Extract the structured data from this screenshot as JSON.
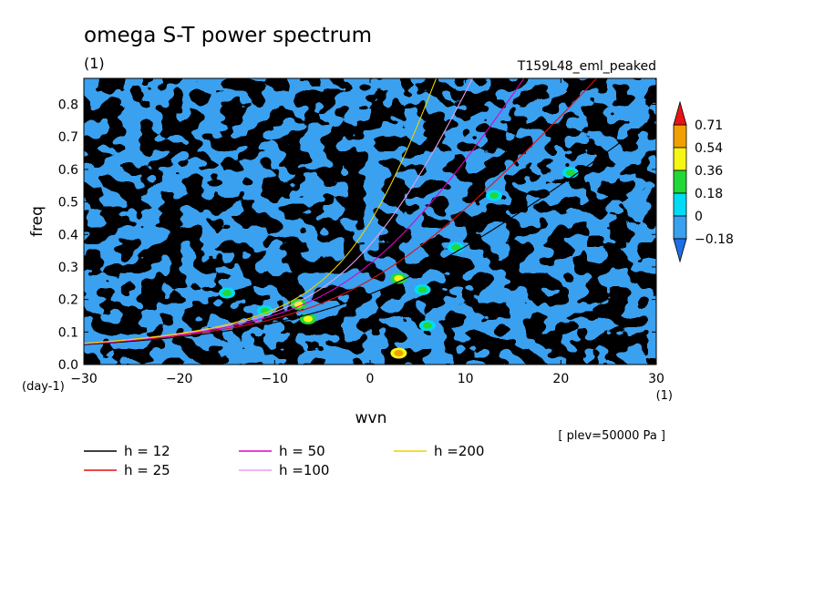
{
  "chart_data": {
    "type": "heatmap",
    "title": "omega S-T power spectrum",
    "subtitle_units": "(1)",
    "run_label": "T159L48_eml_peaked",
    "xlabel": "wvn",
    "x_unit": "(1)",
    "ylabel": "freq",
    "y_unit": "(day-1)",
    "xlim": [
      -30,
      30
    ],
    "ylim": [
      0.0,
      0.88
    ],
    "x_ticks": [
      -30,
      -20,
      -10,
      0,
      10,
      20,
      30
    ],
    "x_tick_labels": [
      "-30",
      "-20",
      "-10",
      "0",
      "10",
      "20",
      "30"
    ],
    "y_ticks": [
      0.0,
      0.1,
      0.2,
      0.3,
      0.4,
      0.5,
      0.6,
      0.7,
      0.8
    ],
    "y_tick_labels": [
      "0.0",
      "0.1",
      "0.2",
      "0.3",
      "0.4",
      "0.5",
      "0.6",
      "0.7",
      "0.8"
    ],
    "note": "[ plev=50000 Pa ]",
    "colorbar": {
      "levels": [
        -0.18,
        0,
        0.18,
        0.36,
        0.54,
        0.71
      ],
      "labels": [
        "-0.18",
        "0",
        "0.18",
        "0.36",
        "0.54",
        "0.71"
      ],
      "colors": [
        "#1e6ee6",
        "#3aa0f0",
        "#00dcf5",
        "#22d838",
        "#f5f516",
        "#f0a000",
        "#e81414"
      ]
    },
    "hotspots": [
      {
        "x": -6.5,
        "y": 0.14,
        "level": "0.36"
      },
      {
        "x": -7.5,
        "y": 0.185,
        "level": "0.36"
      },
      {
        "x": 3.0,
        "y": 0.265,
        "level": "0.36"
      },
      {
        "x": 3.0,
        "y": 0.035,
        "level": "0.54"
      },
      {
        "x": 5.5,
        "y": 0.23,
        "level": "0.18"
      },
      {
        "x": 6.0,
        "y": 0.12,
        "level": "0.18"
      },
      {
        "x": -15.0,
        "y": 0.22,
        "level": "0.18"
      },
      {
        "x": 9.0,
        "y": 0.36,
        "level": "0.18"
      },
      {
        "x": 13.0,
        "y": 0.52,
        "level": "0.18"
      },
      {
        "x": 21.0,
        "y": 0.59,
        "level": "0.18"
      },
      {
        "x": -11.0,
        "y": 0.165,
        "level": "0.18"
      }
    ],
    "series": [
      {
        "name": "h = 12",
        "equivalent_depth": 12,
        "color": "#000000"
      },
      {
        "name": "h = 25",
        "equivalent_depth": 25,
        "color": "#e01010"
      },
      {
        "name": "h = 50",
        "equivalent_depth": 50,
        "color": "#e000c8"
      },
      {
        "name": "h =100",
        "equivalent_depth": 100,
        "color": "#e8a0e8"
      },
      {
        "name": "h =200",
        "equivalent_depth": 200,
        "color": "#f0d000"
      }
    ]
  }
}
